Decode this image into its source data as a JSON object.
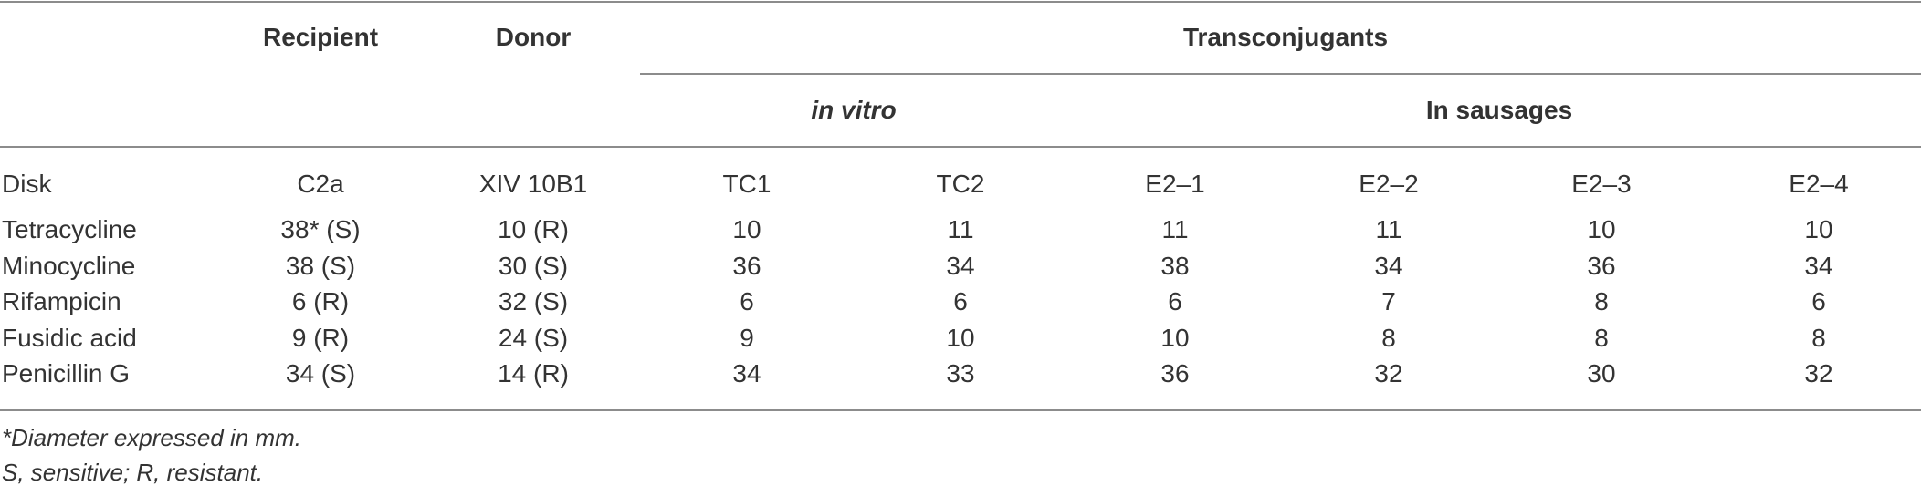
{
  "header": {
    "recipient": "Recipient",
    "donor": "Donor",
    "transconjugants": "Transconjugants",
    "in_vitro": "in vitro",
    "in_sausages": "In sausages"
  },
  "columns": [
    "Disk",
    "C2a",
    "XIV 10B1",
    "TC1",
    "TC2",
    "E2–1",
    "E2–2",
    "E2–3",
    "E2–4"
  ],
  "rows": [
    [
      "Tetracycline",
      "38* (S)",
      "10 (R)",
      "10",
      "11",
      "11",
      "11",
      "10",
      "10"
    ],
    [
      "Minocycline",
      "38 (S)",
      "30 (S)",
      "36",
      "34",
      "38",
      "34",
      "36",
      "34"
    ],
    [
      "Rifampicin",
      "6 (R)",
      "32 (S)",
      "6",
      "6",
      "6",
      "7",
      "8",
      "6"
    ],
    [
      "Fusidic acid",
      "9 (R)",
      "24 (S)",
      "9",
      "10",
      "10",
      "8",
      "8",
      "8"
    ],
    [
      "Penicillin G",
      "34 (S)",
      "14 (R)",
      "34",
      "33",
      "36",
      "32",
      "30",
      "32"
    ]
  ],
  "footnotes": [
    "*Diameter expressed in mm.",
    "S, sensitive; R, resistant."
  ]
}
